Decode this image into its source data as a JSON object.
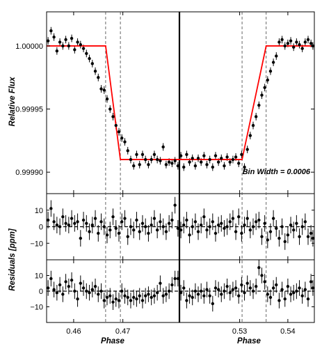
{
  "chart_data": {
    "type": "scatter",
    "title": "",
    "ylabel_main": "Relative Flux",
    "ylabel_residuals": "Residuals [ppm]",
    "xlabel_left": "Phase",
    "xlabel_right": "Phase",
    "annotation": "Bin Width = 0.0006",
    "main_yticks": [
      "1.00000",
      "0.99995",
      "0.99990"
    ],
    "main_ylim": [
      0.999883,
      1.000027
    ],
    "residual_ylim": [
      -20,
      20
    ],
    "residual_yticks": [
      "10",
      "0",
      "−10"
    ],
    "left_xlim": [
      0.4545,
      0.4815
    ],
    "right_xlim": [
      0.5175,
      0.5455
    ],
    "left_xticks": [
      "0.46",
      "0.47"
    ],
    "right_xticks": [
      "0.53",
      "0.54"
    ],
    "left_dashed_x": [
      0.4665,
      0.4695
    ],
    "right_dashed_x": [
      0.5305,
      0.5355
    ],
    "colors": {
      "model": "#ff0000",
      "points": "#000000",
      "frame": "#000000"
    },
    "model": {
      "left": {
        "x": [
          0.4545,
          0.4665,
          0.4695,
          0.4815
        ],
        "y": [
          1.0,
          1.0,
          0.99991,
          0.99991
        ]
      },
      "right": {
        "x": [
          0.5175,
          0.5305,
          0.5355,
          0.5455
        ],
        "y": [
          0.99991,
          0.99991,
          1.0,
          1.0
        ]
      }
    },
    "main_left": {
      "x": [
        0.4548,
        0.4554,
        0.456,
        0.4566,
        0.4572,
        0.4578,
        0.4584,
        0.459,
        0.4596,
        0.4602,
        0.4608,
        0.4614,
        0.462,
        0.4626,
        0.4632,
        0.4638,
        0.4644,
        0.465,
        0.4656,
        0.4662,
        0.4668,
        0.4674,
        0.468,
        0.4686,
        0.4692,
        0.4698,
        0.4704,
        0.471,
        0.4716,
        0.4722,
        0.4728,
        0.4734,
        0.474,
        0.4746,
        0.4752,
        0.4758,
        0.4764,
        0.477,
        0.4776,
        0.4782,
        0.4788,
        0.4794,
        0.48,
        0.4806,
        0.4812
      ],
      "y": [
        1.000004,
        1.000012,
        1.000007,
        0.999996,
        1.000003,
        1.0,
        1.000005,
        1.0,
        1.000006,
        0.999997,
        1.000003,
        1.000001,
        0.999998,
        0.999994,
        0.99999,
        0.999986,
        0.99998,
        0.999975,
        0.999966,
        0.999965,
        0.999958,
        0.99995,
        0.999944,
        0.999937,
        0.999932,
        0.999927,
        0.999924,
        0.999917,
        0.99991,
        0.999905,
        0.999914,
        0.999906,
        0.999914,
        0.99991,
        0.999906,
        0.99991,
        0.999914,
        0.99991,
        0.999909,
        0.99992,
        0.999906,
        0.999908,
        0.999907,
        0.999909,
        0.999905
      ],
      "err": 3e-06
    },
    "main_right": {
      "x": [
        0.5178,
        0.5184,
        0.519,
        0.5196,
        0.5202,
        0.5208,
        0.5214,
        0.522,
        0.5226,
        0.5232,
        0.5238,
        0.5244,
        0.525,
        0.5256,
        0.5262,
        0.5268,
        0.5274,
        0.528,
        0.5286,
        0.5292,
        0.5298,
        0.5304,
        0.531,
        0.5316,
        0.5322,
        0.5328,
        0.5334,
        0.534,
        0.5346,
        0.5352,
        0.5358,
        0.5364,
        0.537,
        0.5376,
        0.5382,
        0.5388,
        0.5394,
        0.54,
        0.5406,
        0.5412,
        0.5418,
        0.5424,
        0.543,
        0.5436,
        0.5442,
        0.5448,
        0.5452
      ],
      "y": [
        0.999913,
        0.999904,
        0.999914,
        0.999908,
        0.999911,
        0.999905,
        0.999911,
        0.999908,
        0.999913,
        0.999906,
        0.99991,
        0.999904,
        0.999913,
        0.999908,
        0.999911,
        0.999905,
        0.999912,
        0.999908,
        0.99991,
        0.999912,
        0.999907,
        0.999914,
        0.999904,
        0.999918,
        0.999929,
        0.999937,
        0.999944,
        0.999953,
        0.999961,
        0.999967,
        0.999973,
        0.99998,
        0.999987,
        0.999992,
        1.000003,
        1.000005,
        1.0,
        1.000002,
        1.000004,
        0.999999,
        1.000003,
        1.000001,
        0.999998,
        1.000003,
        1.000005,
        1.000002,
        1.0
      ],
      "err": 3e-06
    },
    "res1_left": [
      4,
      11,
      3,
      1,
      0,
      6,
      2,
      1,
      5,
      2,
      3,
      -7,
      4,
      2,
      -3,
      1,
      5,
      -4,
      3,
      0,
      -5,
      -2,
      6,
      -1,
      -4,
      3,
      5,
      -6,
      0,
      -2,
      4,
      -3,
      2,
      0,
      -4,
      1,
      5,
      -2,
      3,
      0,
      -3,
      2,
      4,
      13,
      -1
    ],
    "res1_right": [
      -2,
      1,
      4,
      -5,
      0,
      3,
      -3,
      1,
      6,
      -2,
      0,
      3,
      -4,
      1,
      2,
      -1,
      0,
      3,
      5,
      -3,
      6,
      -4,
      1,
      5,
      -2,
      0,
      3,
      4,
      -6,
      2,
      -8,
      -3,
      5,
      -1,
      -7,
      0,
      -9,
      -5,
      1,
      -2,
      2,
      -6,
      0,
      3,
      -6,
      -4,
      -7
    ],
    "res2_left": [
      2,
      8,
      1,
      -1,
      4,
      -2,
      6,
      3,
      7,
      0,
      -5,
      5,
      2,
      0,
      -1,
      1,
      3,
      -2,
      0,
      -6,
      -4,
      -3,
      -7,
      -5,
      -6,
      0,
      -3,
      -4,
      -6,
      -4,
      -5,
      -3,
      -6,
      -3,
      -2,
      -4,
      -3,
      -1,
      5,
      -3,
      -2,
      0,
      4,
      8,
      8
    ],
    "res2_right": [
      -1,
      2,
      -6,
      -3,
      -4,
      0,
      -2,
      0,
      -3,
      1,
      -3,
      -8,
      2,
      1,
      -2,
      0,
      3,
      -1,
      1,
      2,
      -3,
      4,
      -1,
      5,
      2,
      0,
      3,
      15,
      10,
      6,
      -2,
      -4,
      2,
      4,
      -6,
      1,
      -5,
      3,
      -2,
      -1,
      0,
      2,
      -3,
      1,
      -5,
      6,
      2
    ],
    "res_err": 5
  }
}
